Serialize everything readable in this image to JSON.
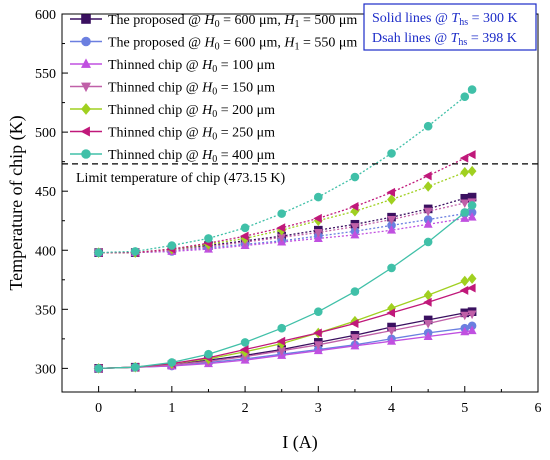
{
  "chart_data": {
    "type": "line",
    "title": "",
    "xlabel": "I (A)",
    "ylabel": "Temperature of chip (K)",
    "xlim": [
      -0.5,
      6
    ],
    "ylim": [
      280,
      600
    ],
    "xticks": [
      0,
      1,
      2,
      3,
      4,
      5,
      6
    ],
    "yticks": [
      300,
      350,
      400,
      450,
      500,
      550,
      600
    ],
    "legend_position": "top-left",
    "x": [
      0,
      0.5,
      1,
      1.5,
      2,
      2.5,
      3,
      3.5,
      4,
      4.5,
      5,
      5.1
    ],
    "series": [
      {
        "name": "The proposed @ H0 = 600 μm, H1 = 500 μm",
        "legend": {
          "pre": "The proposed @ ",
          "v1": "H",
          "s1": "0",
          "m1": " = 600 μm, ",
          "v2": "H",
          "s2": "1",
          "m2": " = 500 μm"
        },
        "color": "#3a1060",
        "marker": "square",
        "solid": [
          300,
          301,
          303,
          307,
          311,
          316,
          322,
          328,
          335,
          341,
          347,
          348
        ],
        "dash": [
          398,
          398,
          401,
          404,
          408,
          412,
          417,
          422,
          428,
          435,
          444,
          445
        ]
      },
      {
        "name": "The proposed @ H0 = 600 μm, H1 = 550 μm",
        "legend": {
          "pre": "The proposed @ ",
          "v1": "H",
          "s1": "0",
          "m1": " = 600 μm, ",
          "v2": "H",
          "s2": "1",
          "m2": " = 550 μm"
        },
        "color": "#6b7fe0",
        "marker": "circle",
        "solid": [
          300,
          301,
          302,
          305,
          308,
          312,
          316,
          320,
          325,
          330,
          334,
          336
        ],
        "dash": [
          398,
          398,
          399,
          402,
          405,
          408,
          412,
          416,
          421,
          426,
          431,
          432
        ]
      },
      {
        "name": "Thinned chip @ H0 = 100 μm",
        "legend": {
          "pre": "Thinned chip @ ",
          "v1": "H",
          "s1": "0",
          "m1": " = 100 μm",
          "v2": "",
          "s2": "",
          "m2": ""
        },
        "color": "#c050e0",
        "marker": "triangle-up",
        "solid": [
          300,
          301,
          302,
          304,
          307,
          311,
          315,
          319,
          323,
          327,
          331,
          332
        ],
        "dash": [
          398,
          398,
          399,
          401,
          404,
          407,
          410,
          413,
          417,
          422,
          427,
          428
        ]
      },
      {
        "name": "Thinned chip @ H0 = 150 μm",
        "legend": {
          "pre": "Thinned chip @ ",
          "v1": "H",
          "s1": "0",
          "m1": " = 150 μm",
          "v2": "",
          "s2": "",
          "m2": ""
        },
        "color": "#c060a8",
        "marker": "triangle-down",
        "solid": [
          300,
          301,
          303,
          306,
          310,
          315,
          320,
          326,
          332,
          338,
          345,
          346
        ],
        "dash": [
          398,
          398,
          400,
          403,
          407,
          411,
          415,
          420,
          426,
          433,
          440,
          441
        ]
      },
      {
        "name": "Thinned chip @ H0 = 200 μm",
        "legend": {
          "pre": "Thinned chip @ ",
          "v1": "H",
          "s1": "0",
          "m1": " = 200 μm",
          "v2": "",
          "s2": "",
          "m2": ""
        },
        "color": "#a0d020",
        "marker": "diamond",
        "solid": [
          300,
          301,
          304,
          308,
          314,
          321,
          330,
          340,
          351,
          362,
          374,
          376
        ],
        "dash": [
          398,
          398,
          401,
          405,
          410,
          417,
          425,
          433,
          443,
          454,
          466,
          467
        ]
      },
      {
        "name": "Thinned chip @ H0 = 250 μm",
        "legend": {
          "pre": "Thinned chip @ ",
          "v1": "H",
          "s1": "0",
          "m1": " = 250 μm",
          "v2": "",
          "s2": "",
          "m2": ""
        },
        "color": "#c0187a",
        "marker": "triangle-left",
        "solid": [
          300,
          301,
          304,
          309,
          316,
          323,
          330,
          338,
          347,
          356,
          366,
          368
        ],
        "dash": [
          398,
          398,
          401,
          406,
          412,
          419,
          427,
          437,
          449,
          463,
          478,
          481
        ]
      },
      {
        "name": "Thinned chip @ H0 = 400 μm",
        "legend": {
          "pre": "Thinned chip @ ",
          "v1": "H",
          "s1": "0",
          "m1": " = 400 μm",
          "v2": "",
          "s2": "",
          "m2": ""
        },
        "color": "#40c0a8",
        "marker": "circle",
        "solid": [
          300,
          301,
          305,
          312,
          322,
          334,
          348,
          365,
          385,
          407,
          432,
          438
        ],
        "dash": [
          398,
          399,
          404,
          410,
          419,
          431,
          445,
          462,
          482,
          505,
          530,
          536
        ]
      }
    ],
    "limit_line": {
      "value": 473.15,
      "label": "Limit temperature of chip (473.15 K)"
    },
    "note": {
      "line1": {
        "pre": "Solid lines @ ",
        "v": "T",
        "s": "hs",
        "post": " = 300 K"
      },
      "line2": {
        "pre": "Dsah lines @ ",
        "v": "T",
        "s": "hs",
        "post": " = 398 K"
      },
      "border_color": "#1c2bc8",
      "text_color": "#1c2bc8"
    }
  }
}
